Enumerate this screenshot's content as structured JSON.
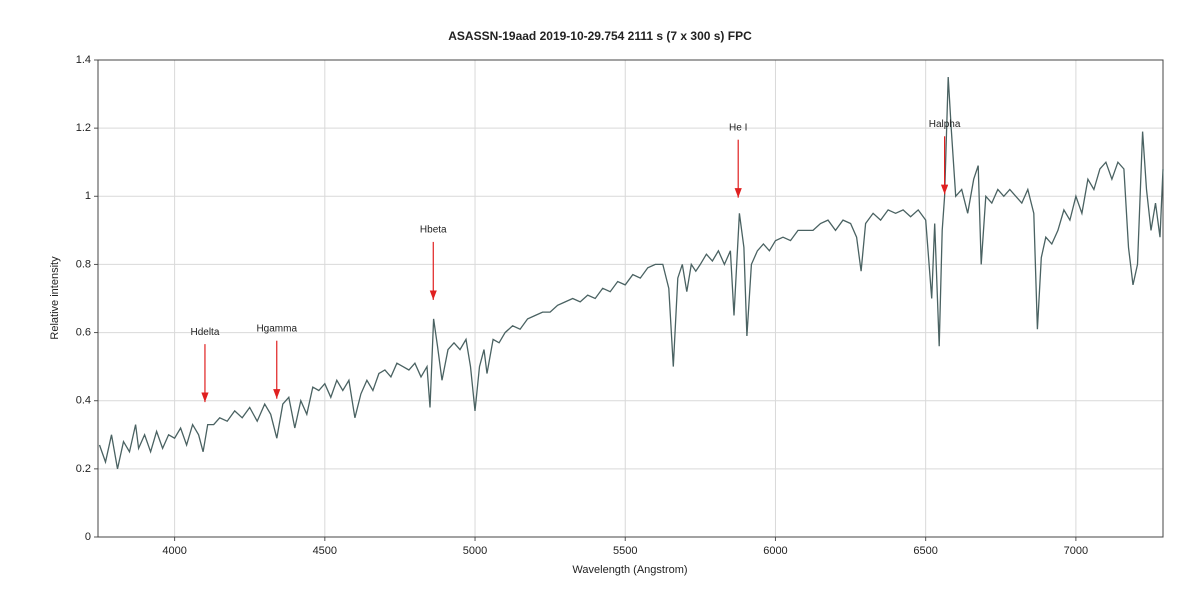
{
  "chart_data": {
    "type": "line",
    "title": "ASASSN-19aad    2019-10-29.754   2111 s (7 x 300 s)   FPC",
    "xlabel": "Wavelength (Angstrom)",
    "ylabel": "Relative intensity",
    "xlim": [
      3745,
      7290
    ],
    "ylim": [
      0,
      1.4
    ],
    "xticks": [
      4000,
      4500,
      5000,
      5500,
      6000,
      6500,
      7000
    ],
    "yticks": [
      0,
      0.2,
      0.4,
      0.6,
      0.8,
      1,
      1.2,
      1.4
    ],
    "grid": true,
    "color": "#4a6262",
    "annotation_color": "#e02020",
    "annotations": [
      {
        "text": "Hdelta",
        "x": 4101,
        "y": 0.39
      },
      {
        "text": "Hgamma",
        "x": 4340,
        "y": 0.4
      },
      {
        "text": "Hbeta",
        "x": 4861,
        "y": 0.69
      },
      {
        "text": "He I",
        "x": 5876,
        "y": 0.99
      },
      {
        "text": "Halpha",
        "x": 6563,
        "y": 1.0
      }
    ],
    "x": [
      3750,
      3770,
      3790,
      3810,
      3830,
      3850,
      3870,
      3880,
      3900,
      3920,
      3940,
      3960,
      3980,
      4000,
      4020,
      4040,
      4060,
      4080,
      4095,
      4110,
      4130,
      4150,
      4175,
      4200,
      4225,
      4250,
      4275,
      4300,
      4320,
      4340,
      4360,
      4380,
      4400,
      4420,
      4440,
      4460,
      4480,
      4500,
      4520,
      4540,
      4560,
      4580,
      4600,
      4620,
      4640,
      4660,
      4680,
      4700,
      4720,
      4740,
      4760,
      4780,
      4800,
      4820,
      4840,
      4850,
      4862,
      4875,
      4890,
      4910,
      4930,
      4950,
      4970,
      4985,
      5000,
      5015,
      5030,
      5040,
      5060,
      5080,
      5100,
      5125,
      5150,
      5175,
      5200,
      5225,
      5250,
      5275,
      5300,
      5325,
      5350,
      5375,
      5400,
      5425,
      5450,
      5475,
      5500,
      5525,
      5550,
      5575,
      5600,
      5625,
      5645,
      5660,
      5675,
      5690,
      5705,
      5720,
      5735,
      5750,
      5770,
      5790,
      5810,
      5830,
      5850,
      5862,
      5880,
      5895,
      5905,
      5920,
      5940,
      5960,
      5980,
      6000,
      6025,
      6050,
      6075,
      6100,
      6125,
      6150,
      6175,
      6200,
      6225,
      6250,
      6270,
      6285,
      6300,
      6325,
      6350,
      6375,
      6400,
      6425,
      6450,
      6475,
      6500,
      6520,
      6530,
      6545,
      6555,
      6563,
      6575,
      6585,
      6600,
      6620,
      6640,
      6660,
      6675,
      6685,
      6700,
      6720,
      6740,
      6760,
      6780,
      6800,
      6820,
      6840,
      6860,
      6872,
      6885,
      6900,
      6920,
      6940,
      6960,
      6980,
      7000,
      7020,
      7040,
      7060,
      7080,
      7100,
      7120,
      7140,
      7160,
      7175,
      7190,
      7205,
      7222,
      7235,
      7250,
      7265,
      7280,
      7290
    ],
    "values": [
      0.27,
      0.22,
      0.3,
      0.2,
      0.28,
      0.25,
      0.33,
      0.26,
      0.3,
      0.25,
      0.31,
      0.26,
      0.3,
      0.29,
      0.32,
      0.27,
      0.33,
      0.3,
      0.25,
      0.33,
      0.33,
      0.35,
      0.34,
      0.37,
      0.35,
      0.38,
      0.34,
      0.39,
      0.36,
      0.29,
      0.39,
      0.41,
      0.32,
      0.4,
      0.36,
      0.44,
      0.43,
      0.45,
      0.41,
      0.46,
      0.43,
      0.46,
      0.35,
      0.42,
      0.46,
      0.43,
      0.48,
      0.49,
      0.47,
      0.51,
      0.5,
      0.49,
      0.51,
      0.47,
      0.5,
      0.38,
      0.64,
      0.56,
      0.46,
      0.55,
      0.57,
      0.55,
      0.58,
      0.5,
      0.37,
      0.5,
      0.55,
      0.48,
      0.58,
      0.57,
      0.6,
      0.62,
      0.61,
      0.64,
      0.65,
      0.66,
      0.66,
      0.68,
      0.69,
      0.7,
      0.69,
      0.71,
      0.7,
      0.73,
      0.72,
      0.75,
      0.74,
      0.77,
      0.76,
      0.79,
      0.8,
      0.8,
      0.73,
      0.5,
      0.76,
      0.8,
      0.72,
      0.8,
      0.78,
      0.8,
      0.83,
      0.81,
      0.84,
      0.8,
      0.84,
      0.65,
      0.95,
      0.85,
      0.59,
      0.8,
      0.84,
      0.86,
      0.84,
      0.87,
      0.88,
      0.87,
      0.9,
      0.9,
      0.9,
      0.92,
      0.93,
      0.9,
      0.93,
      0.92,
      0.88,
      0.78,
      0.92,
      0.95,
      0.93,
      0.96,
      0.95,
      0.96,
      0.94,
      0.96,
      0.93,
      0.7,
      0.92,
      0.56,
      0.9,
      1.0,
      1.35,
      1.2,
      1.0,
      1.02,
      0.95,
      1.05,
      1.09,
      0.8,
      1.0,
      0.98,
      1.02,
      1.0,
      1.02,
      1.0,
      0.98,
      1.02,
      0.95,
      0.61,
      0.82,
      0.88,
      0.86,
      0.9,
      0.96,
      0.93,
      1.0,
      0.95,
      1.05,
      1.02,
      1.08,
      1.1,
      1.05,
      1.1,
      1.08,
      0.85,
      0.74,
      0.8,
      1.19,
      1.02,
      0.9,
      0.98,
      0.88,
      1.08
    ]
  }
}
